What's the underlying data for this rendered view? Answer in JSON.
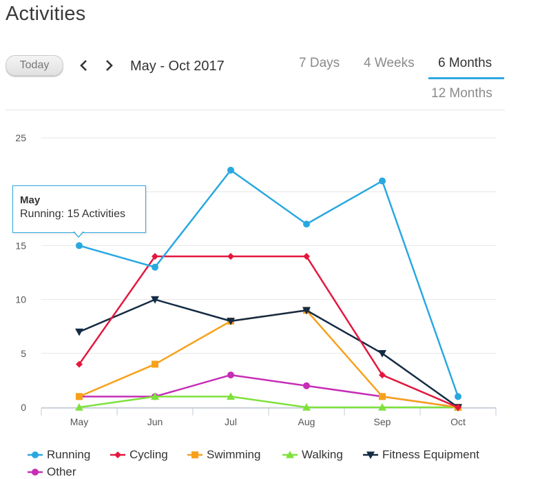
{
  "page": {
    "title": "Activities"
  },
  "toolbar": {
    "today_label": "Today",
    "prev_icon": "chevron-left-icon",
    "next_icon": "chevron-right-icon",
    "date_range": "May - Oct 2017"
  },
  "tabs": [
    {
      "label": "7 Days",
      "active": false
    },
    {
      "label": "4 Weeks",
      "active": false
    },
    {
      "label": "6 Months",
      "active": true
    },
    {
      "label": "12 Months",
      "active": false
    }
  ],
  "accent_color": "#2ca8e0",
  "tooltip": {
    "title": "May",
    "body": "Running: 15 Activities"
  },
  "chart_data": {
    "type": "line",
    "categories": [
      "May",
      "Jun",
      "Jul",
      "Aug",
      "Sep",
      "Oct"
    ],
    "ylim": [
      0,
      25
    ],
    "yticks": [
      0,
      5,
      10,
      15,
      20,
      25
    ],
    "grid": true,
    "legend_position": "bottom",
    "series": [
      {
        "name": "Running",
        "color": "#29a8e0",
        "marker": "circle",
        "values": [
          15,
          13,
          22,
          17,
          21,
          1
        ]
      },
      {
        "name": "Cycling",
        "color": "#e3173e",
        "marker": "diamond",
        "values": [
          4,
          14,
          14,
          14,
          3,
          0
        ]
      },
      {
        "name": "Swimming",
        "color": "#f7a11a",
        "marker": "square",
        "values": [
          1,
          4,
          8,
          9,
          1,
          0
        ]
      },
      {
        "name": "Walking",
        "color": "#7ee13c",
        "marker": "triangle",
        "values": [
          0,
          1,
          1,
          0,
          0,
          0
        ]
      },
      {
        "name": "Fitness Equipment",
        "color": "#142b44",
        "marker": "triangle-down",
        "values": [
          7,
          10,
          8,
          9,
          5,
          0
        ]
      },
      {
        "name": "Other",
        "color": "#c62eb6",
        "marker": "circle",
        "values": [
          1,
          1,
          3,
          2,
          1,
          0
        ]
      }
    ]
  }
}
